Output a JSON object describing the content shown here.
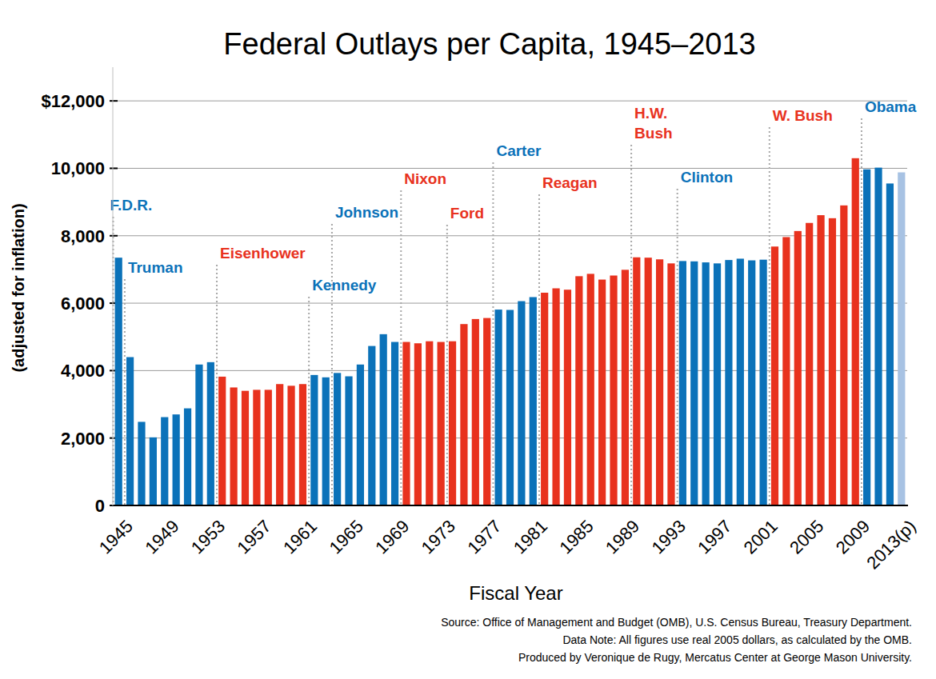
{
  "chart_data": {
    "type": "bar",
    "title": "Federal Outlays per Capita, 1945–2013",
    "y_label": "(adjusted for inflation)",
    "x_label": "Fiscal Year",
    "categories": [
      "1945",
      null,
      null,
      null,
      "1949",
      null,
      null,
      null,
      "1953",
      null,
      null,
      null,
      "1957",
      null,
      null,
      null,
      "1961",
      null,
      null,
      null,
      "1965",
      null,
      null,
      null,
      "1969",
      null,
      null,
      null,
      "1973",
      null,
      null,
      null,
      "1977",
      null,
      null,
      null,
      "1981",
      null,
      null,
      null,
      "1985",
      null,
      null,
      null,
      "1989",
      null,
      null,
      null,
      "1993",
      null,
      null,
      null,
      "1997",
      null,
      null,
      null,
      "2001",
      null,
      null,
      null,
      "2005",
      null,
      null,
      null,
      "2009",
      null,
      null,
      null,
      "2013(p)"
    ],
    "values": [
      7350,
      4400,
      2480,
      2020,
      2620,
      2700,
      2880,
      4180,
      4250,
      3820,
      3500,
      3400,
      3430,
      3430,
      3600,
      3550,
      3600,
      3870,
      3800,
      3930,
      3830,
      4180,
      4730,
      5080,
      4850,
      4850,
      4810,
      4870,
      4850,
      4870,
      5380,
      5530,
      5560,
      5810,
      5800,
      6060,
      6180,
      6310,
      6440,
      6400,
      6800,
      6870,
      6700,
      6820,
      6990,
      7360,
      7350,
      7300,
      7180,
      7250,
      7240,
      7210,
      7180,
      7280,
      7320,
      7270,
      7290,
      7680,
      7960,
      8140,
      8380,
      8610,
      8520,
      8900,
      10300,
      9970,
      10020,
      9550,
      9880
    ],
    "colors": [
      "#0b72b9",
      "#0b72b9",
      "#0b72b9",
      "#0b72b9",
      "#0b72b9",
      "#0b72b9",
      "#0b72b9",
      "#0b72b9",
      "#0b72b9",
      "#e8321e",
      "#e8321e",
      "#e8321e",
      "#e8321e",
      "#e8321e",
      "#e8321e",
      "#e8321e",
      "#e8321e",
      "#0b72b9",
      "#0b72b9",
      "#0b72b9",
      "#0b72b9",
      "#0b72b9",
      "#0b72b9",
      "#0b72b9",
      "#0b72b9",
      "#e8321e",
      "#e8321e",
      "#e8321e",
      "#e8321e",
      "#e8321e",
      "#e8321e",
      "#e8321e",
      "#e8321e",
      "#0b72b9",
      "#0b72b9",
      "#0b72b9",
      "#0b72b9",
      "#e8321e",
      "#e8321e",
      "#e8321e",
      "#e8321e",
      "#e8321e",
      "#e8321e",
      "#e8321e",
      "#e8321e",
      "#e8321e",
      "#e8321e",
      "#e8321e",
      "#e8321e",
      "#0b72b9",
      "#0b72b9",
      "#0b72b9",
      "#0b72b9",
      "#0b72b9",
      "#0b72b9",
      "#0b72b9",
      "#0b72b9",
      "#e8321e",
      "#e8321e",
      "#e8321e",
      "#e8321e",
      "#e8321e",
      "#e8321e",
      "#e8321e",
      "#e8321e",
      "#0b72b9",
      "#0b72b9",
      "#0b72b9",
      "#a7c2e3"
    ],
    "ylim": [
      0,
      13000
    ],
    "yticks": [
      0,
      {
        "value": 2000,
        "label": "2,000"
      },
      {
        "value": 4000,
        "label": "4,000"
      },
      {
        "value": 6000,
        "label": "6,000"
      },
      {
        "value": 8000,
        "label": "8,000"
      },
      {
        "value": 10000,
        "label": "10,000"
      },
      {
        "value": 12000,
        "label": "$12,000"
      }
    ],
    "grid": true,
    "data_labels": false,
    "annotations": [
      {
        "text": "F.D.R.",
        "index": 0,
        "color": "#0b72b9"
      },
      {
        "text": "Truman",
        "index": 1,
        "color": "#0b72b9"
      },
      {
        "text": "Eisenhower",
        "index": 9,
        "color": "#e8321e"
      },
      {
        "text": "Kennedy",
        "index": 17,
        "color": "#0b72b9"
      },
      {
        "text": "Johnson",
        "index": 19,
        "color": "#0b72b9"
      },
      {
        "text": "Nixon",
        "index": 25,
        "color": "#e8321e"
      },
      {
        "text": "Ford",
        "index": 29,
        "color": "#e8321e"
      },
      {
        "text": "Carter",
        "index": 33,
        "color": "#0b72b9"
      },
      {
        "text": "Reagan",
        "index": 37,
        "color": "#e8321e"
      },
      {
        "text": "H.W.\nBush",
        "index": 45,
        "color": "#e8321e"
      },
      {
        "text": "Clinton",
        "index": 49,
        "color": "#0b72b9"
      },
      {
        "text": "W. Bush",
        "index": 57,
        "color": "#e8321e"
      },
      {
        "text": "Obama",
        "index": 65,
        "color": "#0b72b9"
      }
    ],
    "source_lines": [
      "Source: Office of Management and Budget (OMB), U.S. Census Bureau, Treasury Department.",
      "Data Note: All figures use real 2005 dollars, as calculated by the OMB.",
      "Produced by Veronique de Rugy, Mercatus Center at George Mason University."
    ]
  }
}
